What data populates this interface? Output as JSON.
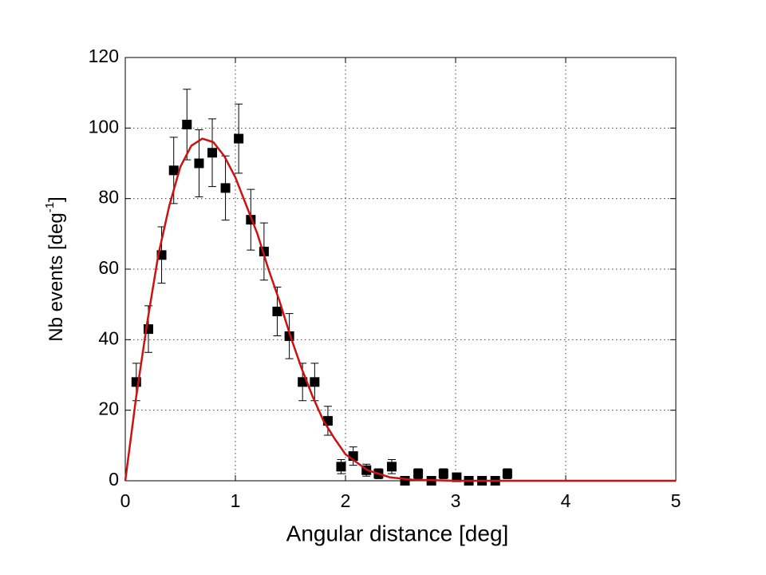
{
  "chart_data": {
    "type": "scatter",
    "xlabel": "Angular distance [deg]",
    "ylabel": [
      "Nb events [deg",
      "-1",
      "]"
    ],
    "xlim": [
      0,
      5
    ],
    "xticks": [
      0,
      1,
      2,
      3,
      4,
      5
    ],
    "ylim": [
      0,
      120
    ],
    "yticks": [
      0,
      20,
      40,
      60,
      80,
      100,
      120
    ],
    "grid": true,
    "series": [
      {
        "type": "scatter",
        "color": "#000000",
        "x": [
          0.1,
          0.21,
          0.33,
          0.44,
          0.56,
          0.67,
          0.79,
          0.91,
          1.03,
          1.14,
          1.26,
          1.38,
          1.49,
          1.61,
          1.72,
          1.84,
          1.96,
          2.07,
          2.19,
          2.3,
          2.42,
          2.54,
          2.66,
          2.78,
          2.89,
          3.01,
          3.12,
          3.24,
          3.36,
          3.47
        ],
        "values": [
          28,
          43,
          64,
          88,
          101,
          90,
          93,
          83,
          97,
          74,
          65,
          48,
          41,
          28,
          28,
          17,
          4,
          7,
          3,
          2,
          4,
          0,
          2,
          0,
          2,
          1,
          0,
          0,
          0,
          2
        ],
        "errors": [
          5.3,
          6.6,
          8,
          9.4,
          10,
          9.5,
          9.6,
          9.1,
          9.8,
          8.6,
          8.1,
          6.9,
          6.4,
          5.3,
          5.3,
          4.1,
          2,
          2.6,
          1.7,
          1.4,
          2,
          0,
          1.4,
          0,
          1.4,
          1,
          0,
          0,
          0,
          1.4
        ]
      },
      {
        "type": "line",
        "color": "#cc1111",
        "x": [
          0,
          0.1,
          0.2,
          0.3,
          0.4,
          0.5,
          0.6,
          0.7,
          0.8,
          0.9,
          1.0,
          1.1,
          1.2,
          1.3,
          1.4,
          1.5,
          1.6,
          1.7,
          1.8,
          1.9,
          2.0,
          2.2,
          2.4,
          2.6,
          3.0,
          4,
          5
        ],
        "values": [
          0,
          24,
          45,
          64,
          78,
          89,
          95,
          97,
          96,
          92,
          86,
          78,
          70,
          60,
          51,
          41,
          32,
          24,
          17,
          12,
          7.5,
          3,
          1,
          0.3,
          0,
          0,
          0
        ]
      }
    ]
  }
}
